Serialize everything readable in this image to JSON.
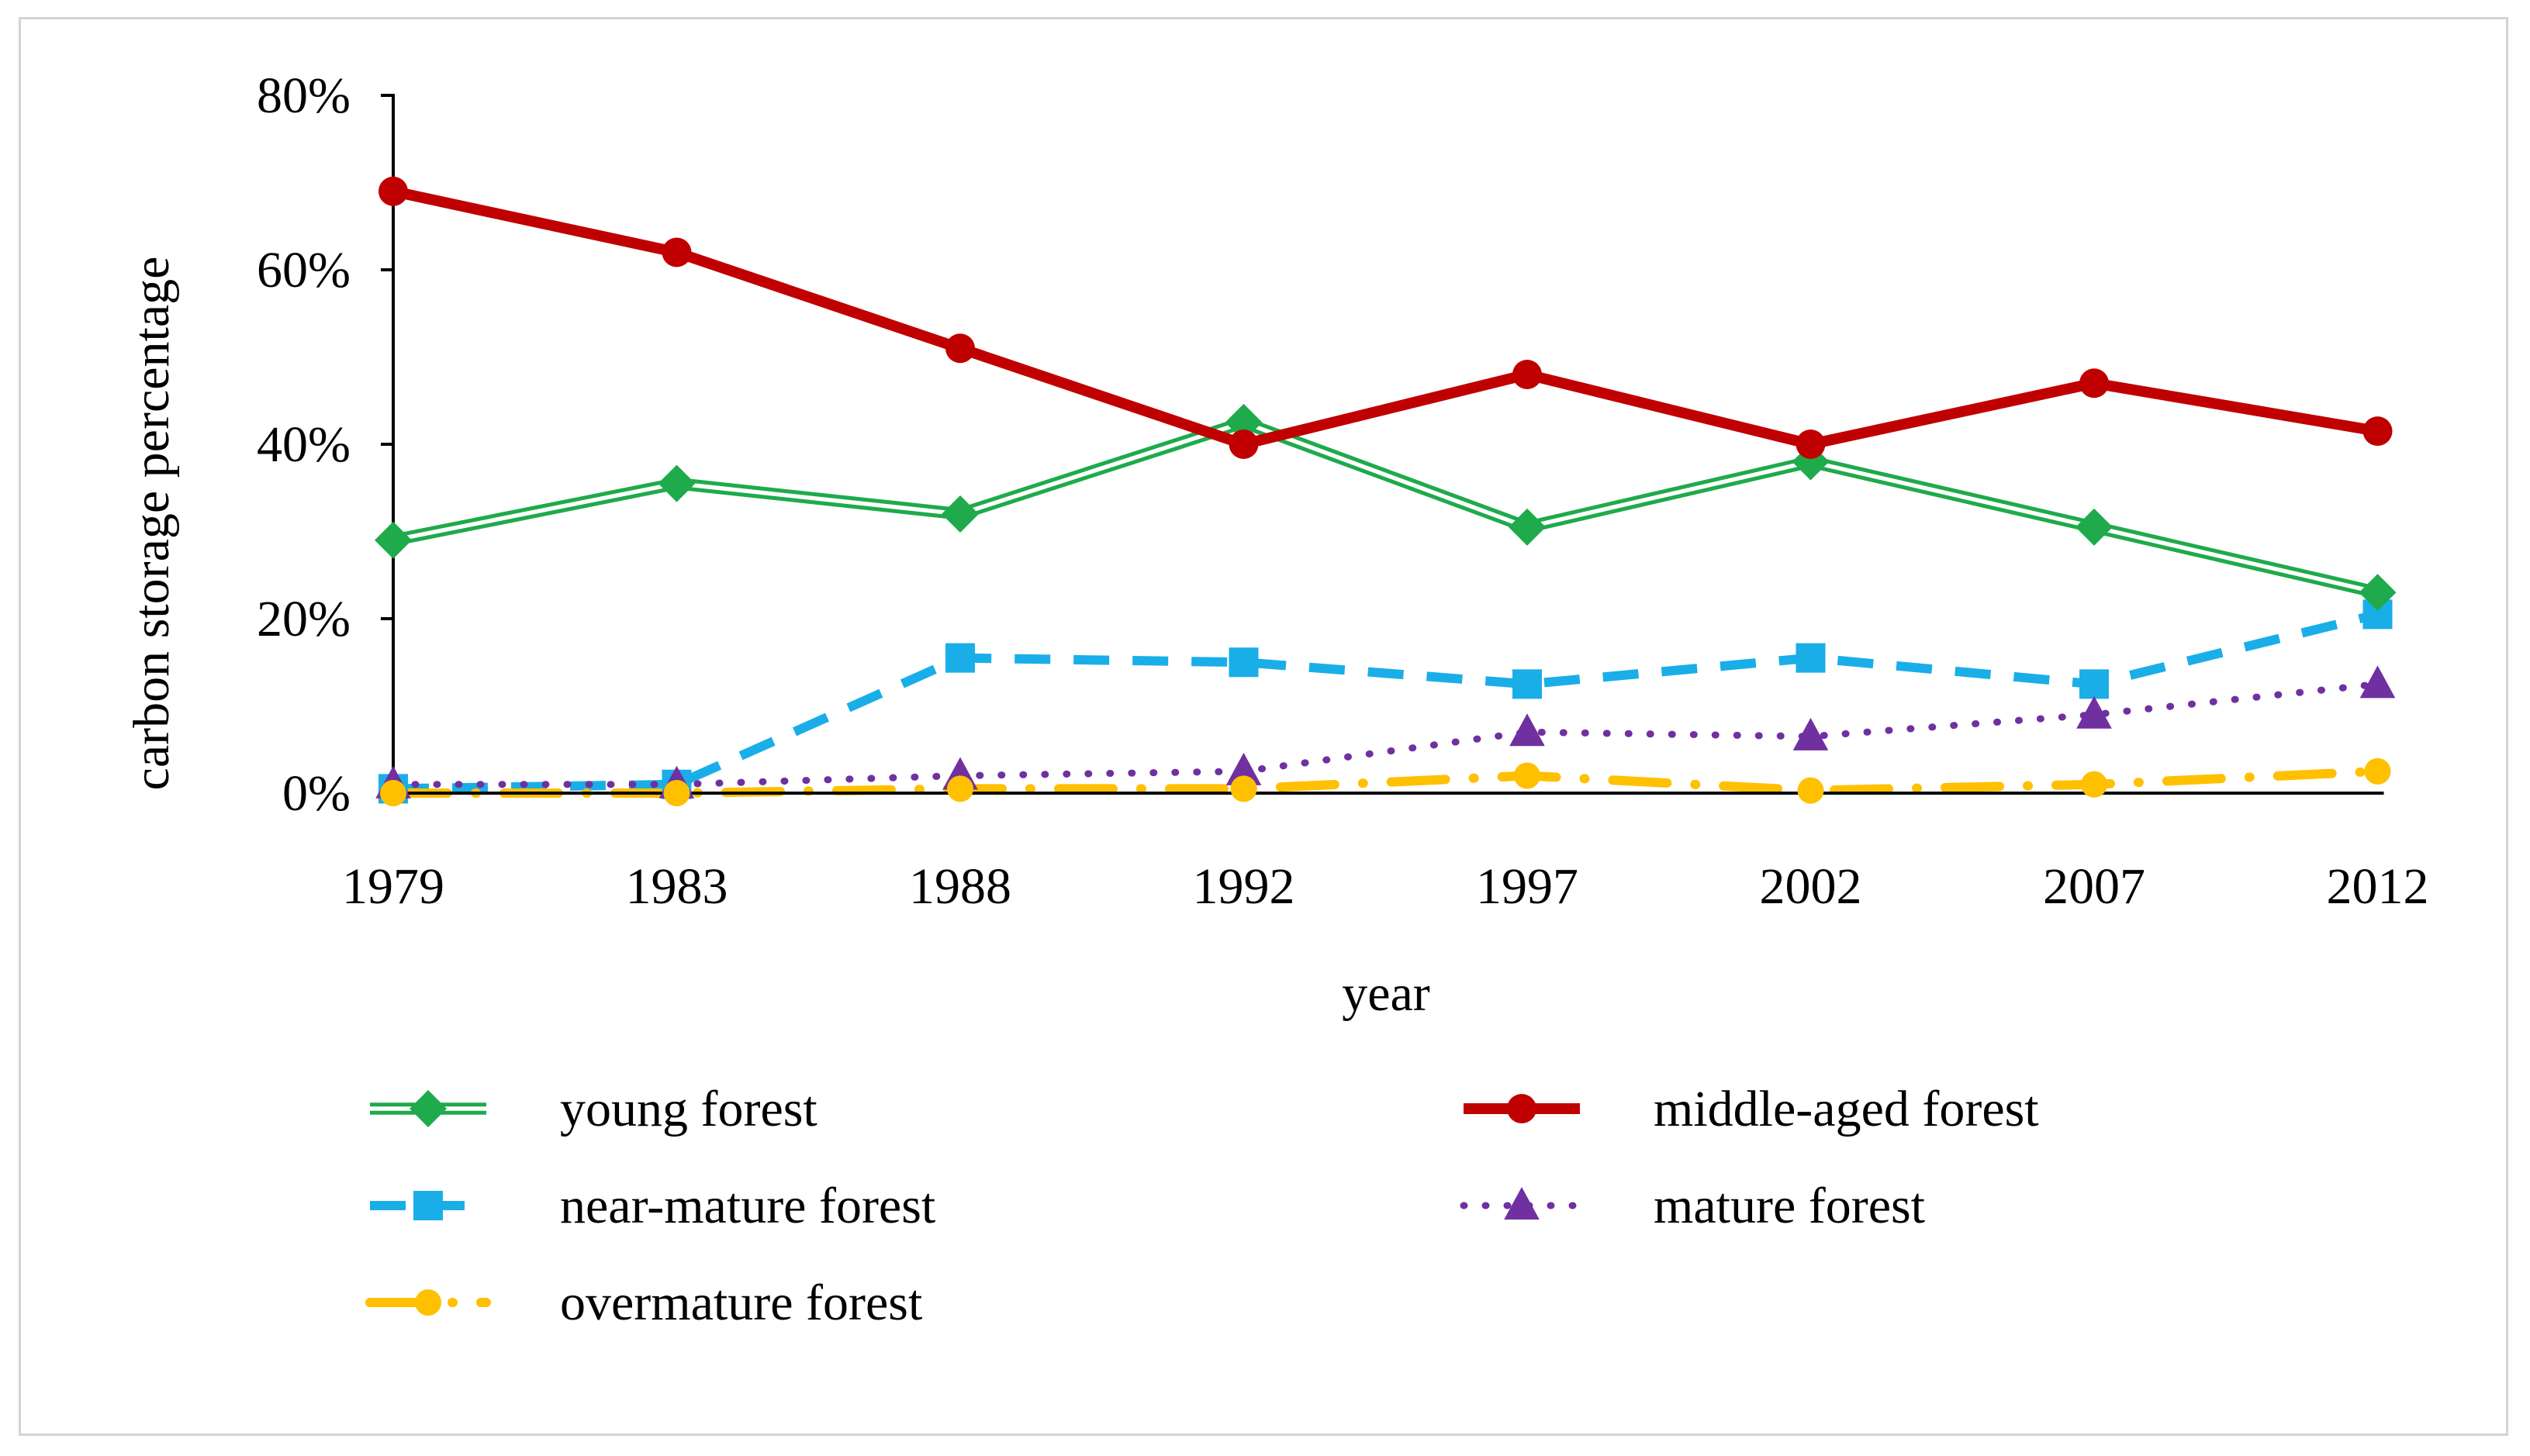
{
  "chart_data": {
    "type": "line",
    "title": "",
    "xlabel": "year",
    "ylabel": "carbon storage percentage",
    "categories": [
      "1979",
      "1983",
      "1988",
      "1992",
      "1997",
      "2002",
      "2007",
      "2012"
    ],
    "ylim": [
      0,
      80
    ],
    "yticks": [
      "0%",
      "20%",
      "40%",
      "60%",
      "80%"
    ],
    "ytick_values": [
      0,
      20,
      40,
      60,
      80
    ],
    "grid": false,
    "legend_position": "bottom",
    "series": [
      {
        "name": "young forest",
        "key": "young",
        "color": "#1faa4b",
        "values": [
          29,
          35.5,
          32,
          42.5,
          30.5,
          38,
          30.5,
          23
        ]
      },
      {
        "name": "middle-aged forest",
        "key": "middle",
        "color": "#c00000",
        "values": [
          69,
          62,
          51,
          40,
          48,
          40,
          47,
          41.5
        ]
      },
      {
        "name": "near-mature forest",
        "key": "near",
        "color": "#1aaee8",
        "values": [
          0.5,
          1,
          15.5,
          15,
          12.5,
          15.5,
          12.5,
          20.5
        ]
      },
      {
        "name": "mature forest",
        "key": "mature",
        "color": "#7030a0",
        "values": [
          1,
          1,
          2,
          2.5,
          7,
          6.5,
          9,
          12.5
        ]
      },
      {
        "name": "overmature forest",
        "key": "over",
        "color": "#ffc000",
        "values": [
          0,
          0,
          0.5,
          0.5,
          2,
          0.3,
          1,
          2.5
        ]
      }
    ]
  }
}
